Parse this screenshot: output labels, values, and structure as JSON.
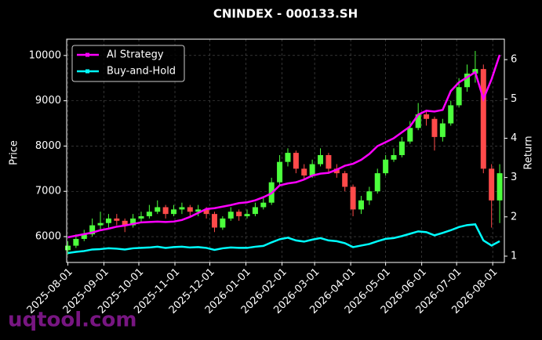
{
  "chart_data": {
    "type": "candlestick",
    "title": "CNINDEX - 000133.SH",
    "ylabel": "Price",
    "y2label": "Return",
    "watermark": "uqtool.com",
    "x": [
      "2025-08-01",
      "2025-08-08",
      "2025-08-15",
      "2025-08-22",
      "2025-08-29",
      "2025-09-05",
      "2025-09-12",
      "2025-09-19",
      "2025-09-26",
      "2025-10-03",
      "2025-10-10",
      "2025-10-17",
      "2025-10-24",
      "2025-10-31",
      "2025-11-07",
      "2025-11-14",
      "2025-11-21",
      "2025-11-28",
      "2025-12-05",
      "2025-12-12",
      "2025-12-19",
      "2025-12-26",
      "2026-01-02",
      "2026-01-09",
      "2026-01-16",
      "2026-01-23",
      "2026-01-30",
      "2026-02-06",
      "2026-02-13",
      "2026-02-20",
      "2026-02-27",
      "2026-03-06",
      "2026-03-13",
      "2026-03-20",
      "2026-03-27",
      "2026-04-03",
      "2026-04-10",
      "2026-04-17",
      "2026-04-24",
      "2026-05-01",
      "2026-05-08",
      "2026-05-15",
      "2026-05-22",
      "2026-05-29",
      "2026-06-05",
      "2026-06-12",
      "2026-06-19",
      "2026-06-26",
      "2026-07-03",
      "2026-07-10",
      "2026-07-17",
      "2026-07-24",
      "2026-07-31",
      "2026-08-07"
    ],
    "ohlc": {
      "open": [
        5700,
        5800,
        5950,
        6050,
        6250,
        6300,
        6400,
        6350,
        6250,
        6400,
        6450,
        6550,
        6650,
        6500,
        6600,
        6650,
        6550,
        6600,
        6500,
        6200,
        6400,
        6550,
        6450,
        6500,
        6650,
        6750,
        7200,
        7650,
        7850,
        7500,
        7350,
        7600,
        7800,
        7500,
        7400,
        7100,
        6600,
        6800,
        7000,
        7400,
        7700,
        7800,
        8100,
        8400,
        8700,
        8600,
        8200,
        8500,
        8900,
        9300,
        9600,
        9700,
        7500,
        6800
      ],
      "high": [
        5900,
        6050,
        6150,
        6400,
        6550,
        6500,
        6500,
        6400,
        6500,
        6550,
        6700,
        6800,
        6700,
        6700,
        6750,
        6700,
        6700,
        6650,
        6550,
        6450,
        6650,
        6600,
        6600,
        6750,
        6850,
        7300,
        7800,
        7950,
        7900,
        7600,
        7700,
        7950,
        7850,
        7600,
        7450,
        7150,
        6900,
        7100,
        7500,
        7800,
        7950,
        8200,
        8550,
        8950,
        8800,
        8650,
        8600,
        9000,
        9500,
        9800,
        10100,
        9800,
        7600,
        7600
      ],
      "low": [
        5600,
        5750,
        5900,
        6000,
        6150,
        6200,
        6250,
        6100,
        6200,
        6300,
        6400,
        6500,
        6400,
        6450,
        6500,
        6450,
        6450,
        6400,
        6100,
        6150,
        6350,
        6350,
        6400,
        6450,
        6600,
        6700,
        7150,
        7550,
        7400,
        7250,
        7300,
        7550,
        7400,
        7300,
        7000,
        6450,
        6500,
        6700,
        6950,
        7350,
        7650,
        7750,
        8050,
        8350,
        8450,
        7900,
        8100,
        8450,
        8850,
        9200,
        9400,
        7400,
        6200,
        6300
      ],
      "close": [
        5800,
        5950,
        6050,
        6250,
        6300,
        6400,
        6350,
        6250,
        6400,
        6450,
        6550,
        6650,
        6500,
        6600,
        6650,
        6550,
        6600,
        6500,
        6200,
        6400,
        6550,
        6450,
        6500,
        6650,
        6750,
        7200,
        7650,
        7850,
        7500,
        7350,
        7600,
        7800,
        7500,
        7400,
        7100,
        6600,
        6800,
        7000,
        7400,
        7700,
        7800,
        8100,
        8400,
        8700,
        8600,
        8200,
        8500,
        8900,
        9300,
        9600,
        9700,
        7500,
        6800,
        7400
      ]
    },
    "up_color": "#4cff3c",
    "down_color": "#ff4a4a",
    "series": [
      {
        "name": "AI Strategy",
        "color": "#ff00ff",
        "axis": "y2",
        "values": [
          1.48,
          1.52,
          1.56,
          1.6,
          1.66,
          1.7,
          1.75,
          1.78,
          1.82,
          1.86,
          1.87,
          1.88,
          1.87,
          1.88,
          1.92,
          2.0,
          2.1,
          2.2,
          2.22,
          2.26,
          2.3,
          2.35,
          2.37,
          2.42,
          2.5,
          2.6,
          2.8,
          2.85,
          2.88,
          2.95,
          3.05,
          3.1,
          3.12,
          3.2,
          3.3,
          3.35,
          3.45,
          3.6,
          3.8,
          3.9,
          4.0,
          4.15,
          4.3,
          4.6,
          4.7,
          4.68,
          4.72,
          5.2,
          5.42,
          5.55,
          5.68,
          5.0,
          5.5,
          6.12
        ]
      },
      {
        "name": "Buy-and-Hold",
        "color": "#00ffff",
        "axis": "y2",
        "values": [
          1.08,
          1.11,
          1.13,
          1.17,
          1.18,
          1.2,
          1.19,
          1.17,
          1.2,
          1.21,
          1.22,
          1.24,
          1.21,
          1.23,
          1.24,
          1.22,
          1.23,
          1.21,
          1.16,
          1.2,
          1.22,
          1.21,
          1.21,
          1.24,
          1.26,
          1.35,
          1.43,
          1.47,
          1.4,
          1.37,
          1.42,
          1.46,
          1.4,
          1.38,
          1.33,
          1.23,
          1.27,
          1.31,
          1.38,
          1.44,
          1.46,
          1.51,
          1.57,
          1.63,
          1.61,
          1.53,
          1.59,
          1.66,
          1.74,
          1.79,
          1.81,
          1.4,
          1.27,
          1.38
        ]
      }
    ],
    "xlim": [
      "2025-07-31",
      "2026-08-11"
    ],
    "xticks": [
      "2025-08-01",
      "2025-09-01",
      "2025-10-01",
      "2025-11-01",
      "2025-12-01",
      "2026-01-01",
      "2026-02-01",
      "2026-03-01",
      "2026-04-01",
      "2026-05-01",
      "2026-06-01",
      "2026-07-01",
      "2026-08-01"
    ],
    "ylim": [
      5430,
      10360
    ],
    "yticks": [
      6000,
      7000,
      8000,
      9000,
      10000
    ],
    "y2lim": [
      0.84,
      6.52
    ],
    "y2ticks": [
      1,
      2,
      3,
      4,
      5,
      6
    ],
    "grid": true,
    "legend": "upper left"
  }
}
